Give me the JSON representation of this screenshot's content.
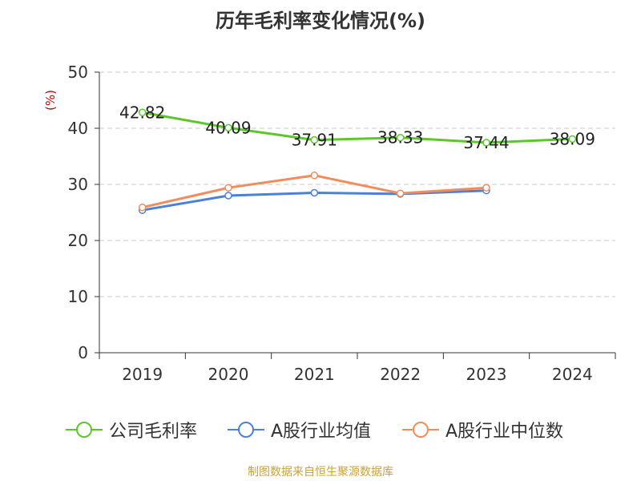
{
  "chart_data": {
    "type": "line",
    "title": "历年毛利率变化情况(%)",
    "ylabel": "(%)",
    "xlabel": "",
    "ylim": [
      0,
      50
    ],
    "yticks": [
      0,
      10,
      20,
      30,
      40,
      50
    ],
    "categories": [
      "2019",
      "2020",
      "2021",
      "2022",
      "2023",
      "2024"
    ],
    "grid": true,
    "legend_position": "bottom",
    "series": [
      {
        "name": "公司毛利率",
        "color": "#5cc72b",
        "values": [
          42.82,
          40.09,
          37.91,
          38.33,
          37.44,
          38.09
        ],
        "labels": [
          "42.82",
          "40.09",
          "37.91",
          "38.33",
          "37.44",
          "38.09"
        ],
        "show_labels": true
      },
      {
        "name": "A股行业均值",
        "color": "#4d80d9",
        "values": [
          25.4,
          28.0,
          28.5,
          28.3,
          28.9,
          null
        ],
        "show_labels": false
      },
      {
        "name": "A股行业中位数",
        "color": "#f28c5a",
        "values": [
          25.9,
          29.4,
          31.6,
          28.4,
          29.4,
          null
        ],
        "show_labels": false
      }
    ]
  },
  "source": "制图数据来自恒生聚源数据库"
}
